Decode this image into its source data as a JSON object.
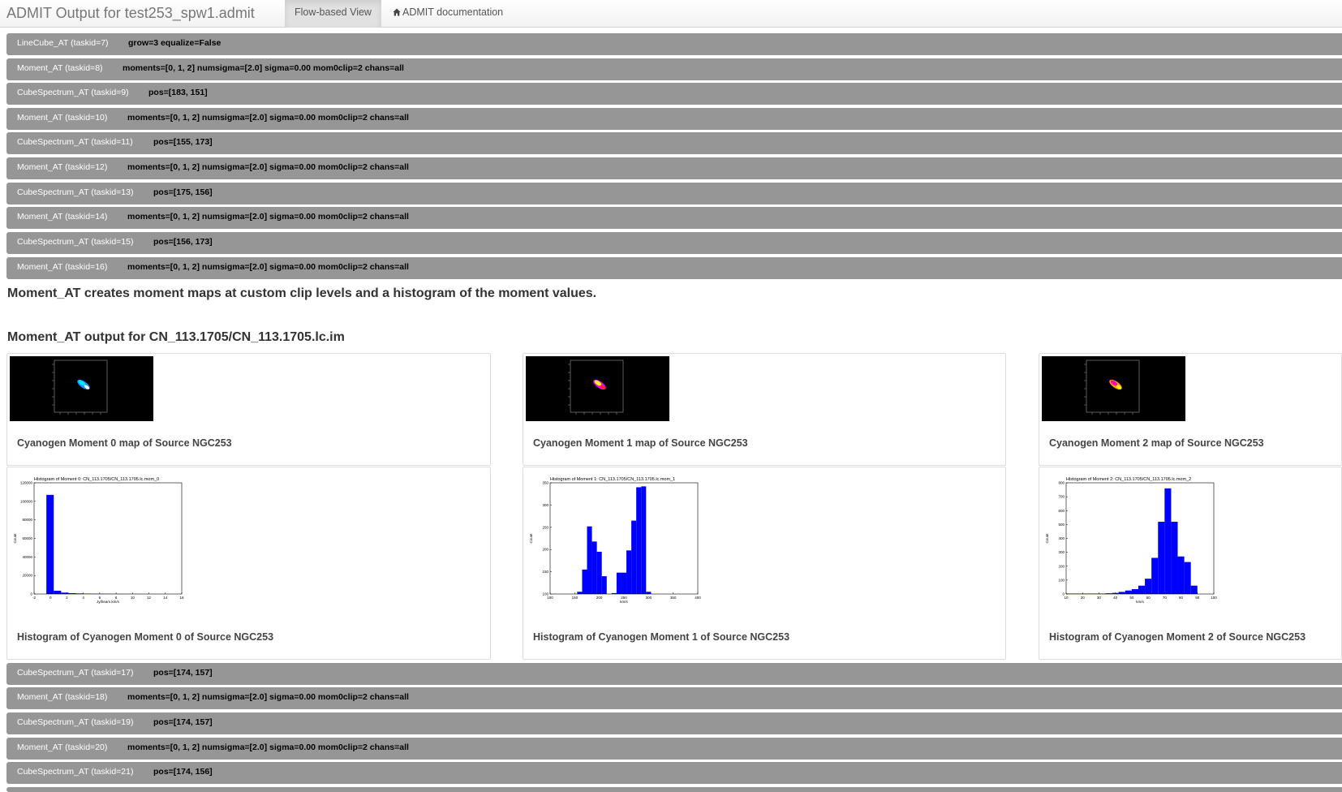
{
  "header": {
    "title": "ADMIT Output for test253_spw1.admit",
    "tabs": [
      {
        "label": "Flow-based View"
      },
      {
        "label": "ADMIT documentation",
        "icon": "home-icon"
      }
    ]
  },
  "tasks_top": [
    {
      "name": "LineCube_AT (taskid=7)",
      "args": "grow=3 equalize=False"
    },
    {
      "name": "Moment_AT (taskid=8)",
      "args": "moments=[0, 1, 2] numsigma=[2.0] sigma=0.00 mom0clip=2 chans=all"
    },
    {
      "name": "CubeSpectrum_AT (taskid=9)",
      "args": "pos=[183, 151]"
    },
    {
      "name": "Moment_AT (taskid=10)",
      "args": "moments=[0, 1, 2] numsigma=[2.0] sigma=0.00 mom0clip=2 chans=all"
    },
    {
      "name": "CubeSpectrum_AT (taskid=11)",
      "args": "pos=[155, 173]"
    },
    {
      "name": "Moment_AT (taskid=12)",
      "args": "moments=[0, 1, 2] numsigma=[2.0] sigma=0.00 mom0clip=2 chans=all"
    },
    {
      "name": "CubeSpectrum_AT (taskid=13)",
      "args": "pos=[175, 156]"
    },
    {
      "name": "Moment_AT (taskid=14)",
      "args": "moments=[0, 1, 2] numsigma=[2.0] sigma=0.00 mom0clip=2 chans=all"
    },
    {
      "name": "CubeSpectrum_AT (taskid=15)",
      "args": "pos=[156, 173]"
    },
    {
      "name": "Moment_AT (taskid=16)",
      "args": "moments=[0, 1, 2] numsigma=[2.0] sigma=0.00 mom0clip=2 chans=all"
    }
  ],
  "description": "Moment_AT creates moment maps at custom clip levels and a histogram of the moment values.",
  "output_heading": "Moment_AT output for CN_113.1705/CN_113.1705.lc.im",
  "maps": [
    {
      "caption": "Cyanogen Moment 0 map of Source NGC253",
      "colors": [
        "#1e90ff",
        "#00e5ff",
        "#ffffff"
      ]
    },
    {
      "caption": "Cyanogen Moment 1 map of Source NGC253",
      "colors": [
        "#ff00ff",
        "#ffff00",
        "#ff2020"
      ]
    },
    {
      "caption": "Cyanogen Moment 2 map of Source NGC253",
      "colors": [
        "#ffa500",
        "#ff00cc",
        "#ffff00"
      ]
    }
  ],
  "histograms": [
    {
      "caption": "Histogram of Cyanogen Moment 0 of Source NGC253",
      "chart_data": {
        "type": "bar",
        "title": "Histogram of Moment 0: CN_113.1705/CN_113.1705.lc.mom_0",
        "xlabel": "Jy/beam.km/s",
        "ylabel": "Count",
        "xlim": [
          -2,
          16
        ],
        "ylim": [
          0,
          120000
        ],
        "xticks": [
          "-2",
          "0",
          "2",
          "4",
          "6",
          "8",
          "10",
          "12",
          "14",
          "16"
        ],
        "yticks": [
          "0",
          "20000",
          "40000",
          "60000",
          "80000",
          "100000",
          "120000"
        ],
        "bin_start": -0.5,
        "bin_width": 0.9,
        "values": [
          107000,
          3500,
          1500,
          900,
          600,
          400,
          300,
          200,
          150,
          120,
          100,
          80,
          60,
          50,
          40,
          30,
          20,
          15,
          10,
          5
        ]
      }
    },
    {
      "caption": "Histogram of Cyanogen Moment 1 of Source NGC253",
      "chart_data": {
        "type": "bar",
        "title": "Histogram of Moment 1: CN_113.1705/CN_113.1705.lc.mom_1",
        "xlabel": "km/s",
        "ylabel": "Count",
        "xlim": [
          100,
          400
        ],
        "ylim": [
          100,
          350
        ],
        "xticks": [
          "100",
          "150",
          "200",
          "250",
          "300",
          "350",
          "400"
        ],
        "yticks": [
          "100",
          "150",
          "200",
          "250",
          "300",
          "350"
        ],
        "bin_start": 155,
        "bin_width": 10,
        "values": [
          105,
          155,
          252,
          218,
          195,
          140,
          100,
          102,
          148,
          148,
          198,
          265,
          340,
          342,
          105
        ]
      }
    },
    {
      "caption": "Histogram of Cyanogen Moment 2 of Source NGC253",
      "chart_data": {
        "type": "bar",
        "title": "Histogram of Moment 2: CN_113.1705/CN_113.1705.lc.mom_2",
        "xlabel": "km/s",
        "ylabel": "Count",
        "xlim": [
          10,
          100
        ],
        "ylim": [
          0,
          800
        ],
        "xticks": [
          "10",
          "20",
          "30",
          "40",
          "50",
          "60",
          "70",
          "80",
          "90",
          "100"
        ],
        "yticks": [
          "0",
          "100",
          "200",
          "300",
          "400",
          "500",
          "600",
          "700",
          "800"
        ],
        "bin_start": 10,
        "bin_width": 4,
        "values": [
          3,
          3,
          3,
          3,
          3,
          3,
          5,
          8,
          15,
          25,
          35,
          60,
          110,
          260,
          520,
          760,
          520,
          270,
          230,
          60
        ]
      }
    }
  ],
  "tasks_bottom": [
    {
      "name": "CubeSpectrum_AT (taskid=17)",
      "args": "pos=[174, 157]"
    },
    {
      "name": "Moment_AT (taskid=18)",
      "args": "moments=[0, 1, 2] numsigma=[2.0] sigma=0.00 mom0clip=2 chans=all"
    },
    {
      "name": "CubeSpectrum_AT (taskid=19)",
      "args": "pos=[174, 157]"
    },
    {
      "name": "Moment_AT (taskid=20)",
      "args": "moments=[0, 1, 2] numsigma=[2.0] sigma=0.00 mom0clip=2 chans=all"
    },
    {
      "name": "CubeSpectrum_AT (taskid=21)",
      "args": "pos=[174, 156]"
    }
  ]
}
